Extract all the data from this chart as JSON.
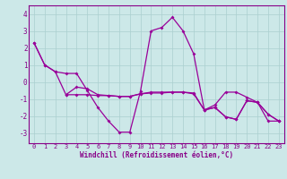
{
  "xlabel": "Windchill (Refroidissement éolien,°C)",
  "xlim": [
    -0.5,
    23.5
  ],
  "ylim": [
    -3.6,
    4.5
  ],
  "yticks": [
    -3,
    -2,
    -1,
    0,
    1,
    2,
    3,
    4
  ],
  "xticks": [
    0,
    1,
    2,
    3,
    4,
    5,
    6,
    7,
    8,
    9,
    10,
    11,
    12,
    13,
    14,
    15,
    16,
    17,
    18,
    19,
    20,
    21,
    22,
    23
  ],
  "bg_color": "#cce8e8",
  "line_color": "#990099",
  "grid_color": "#aacfcf",
  "lines": [
    {
      "x": [
        0,
        1,
        2,
        3,
        4,
        5,
        6,
        7,
        8,
        9,
        10,
        11,
        12,
        13,
        14,
        15,
        16,
        17,
        18,
        19,
        20,
        21,
        22,
        23
      ],
      "y": [
        2.3,
        1.0,
        0.6,
        0.5,
        0.5,
        -0.5,
        -1.5,
        -2.3,
        -2.95,
        -2.95,
        -0.55,
        3.0,
        3.2,
        3.8,
        3.0,
        1.65,
        -1.65,
        -1.35,
        -0.6,
        -0.6,
        -0.9,
        -1.2,
        -2.3,
        -2.3
      ]
    },
    {
      "x": [
        0,
        1,
        2,
        3,
        4,
        5,
        6,
        7,
        8,
        9,
        10,
        11,
        12,
        13,
        14,
        15,
        16,
        17,
        18,
        19,
        20,
        21,
        22,
        23
      ],
      "y": [
        2.3,
        1.0,
        0.6,
        -0.75,
        -0.75,
        -0.75,
        -0.8,
        -0.8,
        -0.85,
        -0.85,
        -0.7,
        -0.6,
        -0.6,
        -0.6,
        -0.6,
        -0.7,
        -1.65,
        -1.5,
        -2.05,
        -2.2,
        -1.1,
        -1.2,
        -1.9,
        -2.3
      ]
    },
    {
      "x": [
        3,
        4,
        5,
        6,
        7,
        8,
        9,
        10,
        11,
        12,
        13,
        14,
        15,
        16,
        17,
        18,
        19,
        20,
        21,
        22,
        23
      ],
      "y": [
        -0.75,
        -0.3,
        -0.4,
        -0.75,
        -0.8,
        -0.85,
        -0.85,
        -0.7,
        -0.65,
        -0.65,
        -0.6,
        -0.6,
        -0.65,
        -1.65,
        -1.5,
        -2.05,
        -2.2,
        -1.1,
        -1.2,
        -1.9,
        -2.3
      ]
    }
  ]
}
